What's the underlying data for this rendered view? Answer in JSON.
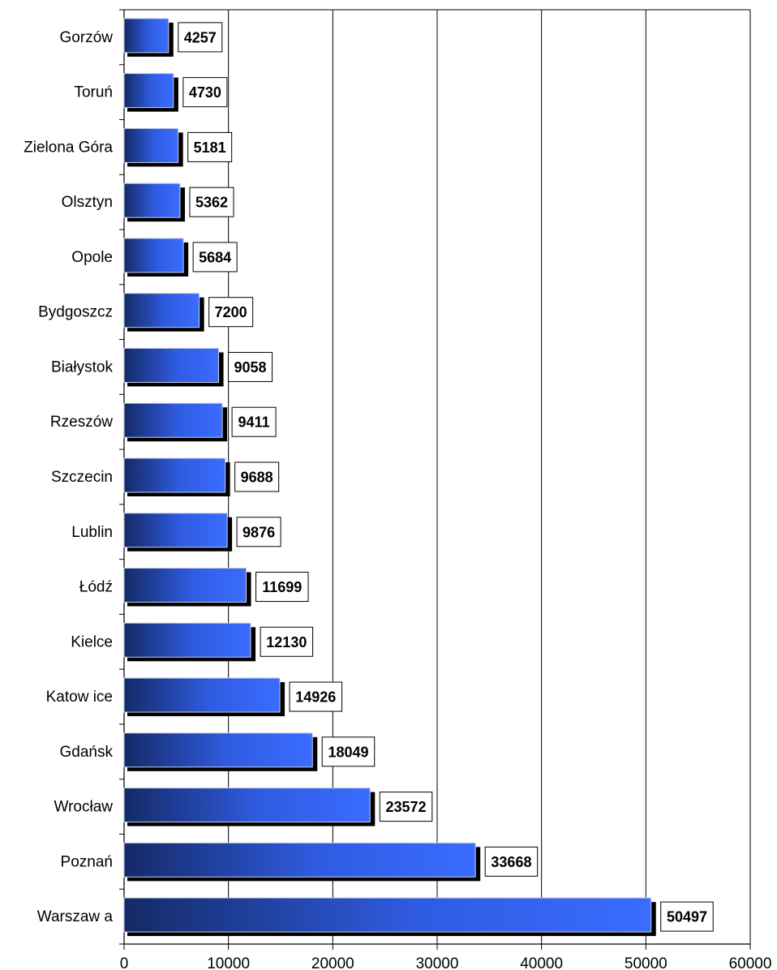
{
  "chart_data": {
    "type": "bar",
    "orientation": "horizontal",
    "categories": [
      "Gorzów",
      "Toruń",
      "Zielona Góra",
      "Olsztyn",
      "Opole",
      "Bydgoszcz",
      "Białystok",
      "Rzeszów",
      "Szczecin",
      "Lublin",
      "Łódź",
      "Kielce",
      "Katow ice",
      "Gdańsk",
      "Wrocław",
      "Poznań",
      "Warszaw a"
    ],
    "values": [
      4257,
      4730,
      5181,
      5362,
      5684,
      7200,
      9058,
      9411,
      9688,
      9876,
      11699,
      12130,
      14926,
      18049,
      23572,
      33668,
      50497
    ],
    "data_labels": [
      "4257",
      "4730",
      "5181",
      "5362",
      "5684",
      "7200",
      "9058",
      "9411",
      "9688",
      "9876",
      "11699",
      "12130",
      "14926",
      "18049",
      "23572",
      "33668",
      "50497"
    ],
    "x_ticks": [
      "0",
      "10000",
      "20000",
      "30000",
      "40000",
      "50000",
      "60000"
    ],
    "xlim": [
      0,
      60000
    ],
    "grid": "vertical",
    "legend": "none",
    "title": "",
    "xlabel": "",
    "ylabel": "",
    "colors": {
      "bar_dark": "#142a66",
      "bar_light": "#3a6cff",
      "bar_shadow": "#000000",
      "grid": "#000000",
      "label_box": "#ffffff"
    }
  }
}
